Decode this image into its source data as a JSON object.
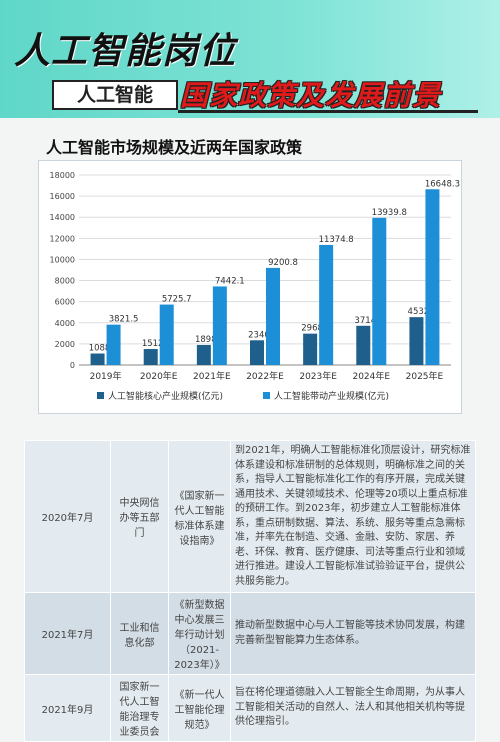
{
  "header": {
    "main_title": "人工智能岗位",
    "badge": "人工智能",
    "subtitle": "国家政策及发展前景"
  },
  "chart_heading": "人工智能市场规模及近两年国家政策",
  "colors": {
    "core": "#1f5f8b",
    "driven": "#1d8fd6",
    "band": "#6fe0d2"
  },
  "chart_data": {
    "type": "bar",
    "categories": [
      "2019年",
      "2020年E",
      "2021年E",
      "2022年E",
      "2023年E",
      "2024年E",
      "2025年E"
    ],
    "series": [
      {
        "name": "人工智能核心产业规模(亿元)",
        "values": [
          1088.6,
          1512.5,
          1898.1,
          2340.4,
          2968.9,
          3714.6,
          4532.6
        ],
        "labels": [
          "1088.6",
          "1512.5",
          "1898.1",
          "2340.4",
          "2968.9",
          "3714.6",
          "4532.6"
        ]
      },
      {
        "name": "人工智能带动产业规模(亿元)",
        "values": [
          3821.5,
          5725.7,
          7442.1,
          9200.8,
          11374.8,
          13939.8,
          16648.3
        ],
        "labels": [
          "3821.5",
          "5725.7",
          "7442.1",
          "9200.8",
          "11374.8",
          "13939.8",
          "16648.3"
        ]
      }
    ],
    "yticks": [
      "0",
      "2000",
      "4000",
      "6000",
      "8000",
      "10000",
      "12000",
      "14000",
      "16000",
      "18000"
    ],
    "ylim": [
      0,
      18000
    ],
    "grid": true,
    "legend": "bottom"
  },
  "policies": [
    {
      "date": "2020年7月",
      "dept": "中央网信办等五部门",
      "doc": "《国家新一代人工智能标准体系建设指南》",
      "content": "到2021年，明确人工智能标准化顶层设计，研究标准体系建设和标准研制的总体规则，明确标准之间的关系，指导人工智能标准化工作的有序开展，完成关键通用技术、关键领域技术、伦理等20项以上重点标准的预研工作。到2023年，初步建立人工智能标准体系，重点研制数据、算法、系统、服务等重点急需标准，并率先在制造、交通、金融、安防、家居、养老、环保、教育、医疗健康、司法等重点行业和领域进行推进。建设人工智能标准试验验证平台，提供公共服务能力。"
    },
    {
      "date": "2021年7月",
      "dept": "工业和信息化部",
      "doc": "《新型数据中心发展三年行动计划（2021-2023年）》",
      "content": "推动新型数据中心与人工智能等技术协同发展，构建完善新型智能算力生态体系。"
    },
    {
      "date": "2021年9月",
      "dept": "国家新一代人工智能治理专业委员会",
      "doc": "《新一代人工智能伦理规范》",
      "content": "旨在将伦理道德融入人工智能全生命周期，为从事人工智能相关活动的自然人、法人和其他相关机构等提供伦理指引。"
    }
  ]
}
